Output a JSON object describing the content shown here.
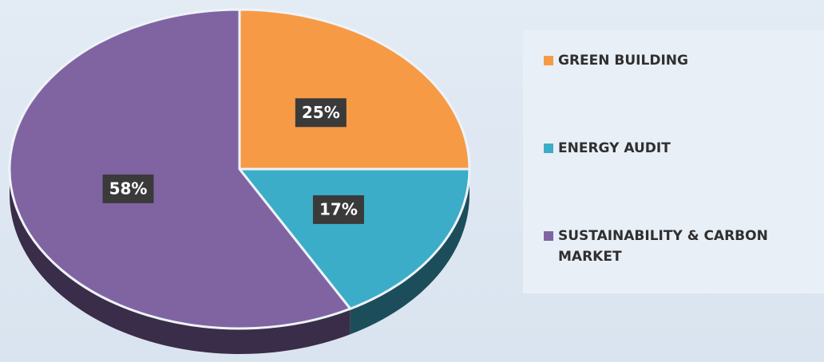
{
  "chart_data": {
    "type": "pie",
    "categories": [
      "GREEN BUILDING",
      "ENERGY AUDIT",
      "SUSTAINABILITY & CARBON MARKET"
    ],
    "values": [
      25,
      17,
      58
    ],
    "value_labels": [
      "25%",
      "17%",
      "58%"
    ],
    "colors": [
      "#f79a46",
      "#3cadc8",
      "#8064a2"
    ],
    "legend": "right"
  }
}
